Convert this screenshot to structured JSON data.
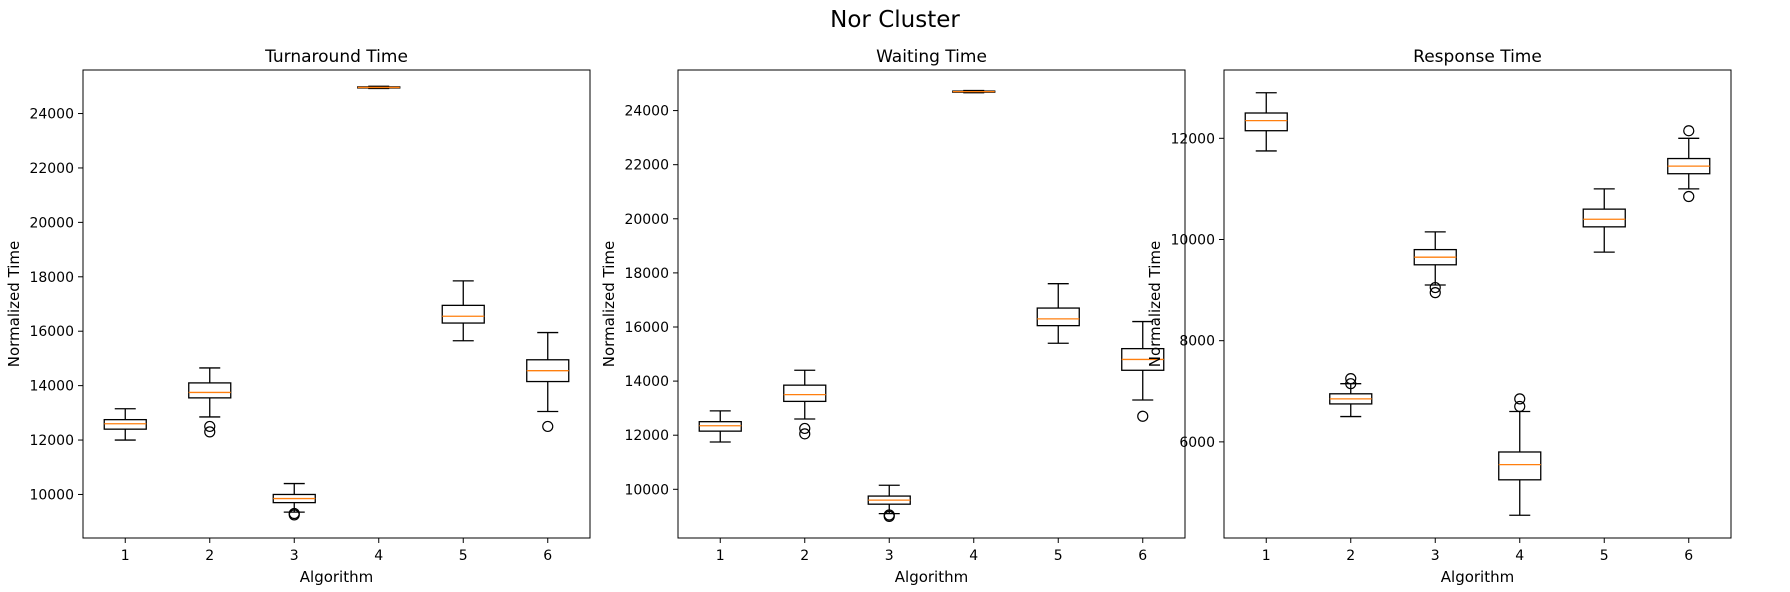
{
  "figure": {
    "suptitle": "Nor Cluster"
  },
  "chart_data": [
    {
      "type": "box",
      "title": "Turnaround Time",
      "xlabel": "Algorithm",
      "ylabel": "Normalized Time",
      "categories": [
        "1",
        "2",
        "3",
        "4",
        "5",
        "6"
      ],
      "ylim": [
        8400,
        25600
      ],
      "yticks": [
        10000,
        12000,
        14000,
        16000,
        18000,
        20000,
        22000,
        24000
      ],
      "tick_labels": [
        "10000",
        "12000",
        "14000",
        "16000",
        "18000",
        "20000",
        "22000",
        "24000"
      ],
      "boxes": [
        {
          "whislo": 12000,
          "q1": 12400,
          "med": 12600,
          "q3": 12750,
          "whishi": 13150,
          "fliers": []
        },
        {
          "whislo": 12850,
          "q1": 13550,
          "med": 13750,
          "q3": 14100,
          "whishi": 14650,
          "fliers": [
            12500,
            12300
          ]
        },
        {
          "whislo": 9350,
          "q1": 9700,
          "med": 9850,
          "q3": 10000,
          "whishi": 10400,
          "fliers": [
            9250,
            9300
          ]
        },
        {
          "whislo": 24920,
          "q1": 24940,
          "med": 24960,
          "q3": 24980,
          "whishi": 25000,
          "fliers": []
        },
        {
          "whislo": 15650,
          "q1": 16300,
          "med": 16550,
          "q3": 16950,
          "whishi": 17850,
          "fliers": []
        },
        {
          "whislo": 13050,
          "q1": 14150,
          "med": 14550,
          "q3": 14950,
          "whishi": 15950,
          "fliers": [
            12500
          ]
        }
      ]
    },
    {
      "type": "box",
      "title": "Waiting Time",
      "xlabel": "Algorithm",
      "ylabel": "Normalized Time",
      "categories": [
        "1",
        "2",
        "3",
        "4",
        "5",
        "6"
      ],
      "ylim": [
        8200,
        25500
      ],
      "yticks": [
        10000,
        12000,
        14000,
        16000,
        18000,
        20000,
        22000,
        24000
      ],
      "tick_labels": [
        "10000",
        "12000",
        "14000",
        "16000",
        "18000",
        "20000",
        "22000",
        "24000"
      ],
      "boxes": [
        {
          "whislo": 11750,
          "q1": 12150,
          "med": 12350,
          "q3": 12500,
          "whishi": 12900,
          "fliers": []
        },
        {
          "whislo": 12600,
          "q1": 13250,
          "med": 13500,
          "q3": 13850,
          "whishi": 14400,
          "fliers": [
            12250,
            12050
          ]
        },
        {
          "whislo": 9100,
          "q1": 9450,
          "med": 9600,
          "q3": 9750,
          "whishi": 10150,
          "fliers": [
            9000,
            9050
          ]
        },
        {
          "whislo": 24660,
          "q1": 24680,
          "med": 24700,
          "q3": 24720,
          "whishi": 24740,
          "fliers": []
        },
        {
          "whislo": 15400,
          "q1": 16050,
          "med": 16300,
          "q3": 16700,
          "whishi": 17600,
          "fliers": []
        },
        {
          "whislo": 13300,
          "q1": 14400,
          "med": 14800,
          "q3": 15200,
          "whishi": 16200,
          "fliers": [
            12700
          ]
        }
      ]
    },
    {
      "type": "box",
      "title": "Response Time",
      "xlabel": "Algorithm",
      "ylabel": "Normalized Time",
      "categories": [
        "1",
        "2",
        "3",
        "4",
        "5",
        "6"
      ],
      "ylim": [
        4100,
        13350
      ],
      "yticks": [
        6000,
        8000,
        10000,
        12000
      ],
      "tick_labels": [
        "6000",
        "8000",
        "10000",
        "12000"
      ],
      "boxes": [
        {
          "whislo": 11750,
          "q1": 12150,
          "med": 12350,
          "q3": 12500,
          "whishi": 12900,
          "fliers": []
        },
        {
          "whislo": 6500,
          "q1": 6750,
          "med": 6850,
          "q3": 6950,
          "whishi": 7150,
          "fliers": [
            7250,
            7150
          ]
        },
        {
          "whislo": 9100,
          "q1": 9500,
          "med": 9650,
          "q3": 9800,
          "whishi": 10150,
          "fliers": [
            9050,
            8950
          ]
        },
        {
          "whislo": 4550,
          "q1": 5250,
          "med": 5550,
          "q3": 5800,
          "whishi": 6600,
          "fliers": [
            6850,
            6700
          ]
        },
        {
          "whislo": 9750,
          "q1": 10250,
          "med": 10400,
          "q3": 10600,
          "whishi": 11000,
          "fliers": []
        },
        {
          "whislo": 11000,
          "q1": 11300,
          "med": 11450,
          "q3": 11600,
          "whishi": 12000,
          "fliers": [
            12150,
            10850
          ]
        }
      ]
    }
  ],
  "colors": {
    "box": "#000000",
    "median": "#ff7f0e",
    "background": "#ffffff"
  }
}
